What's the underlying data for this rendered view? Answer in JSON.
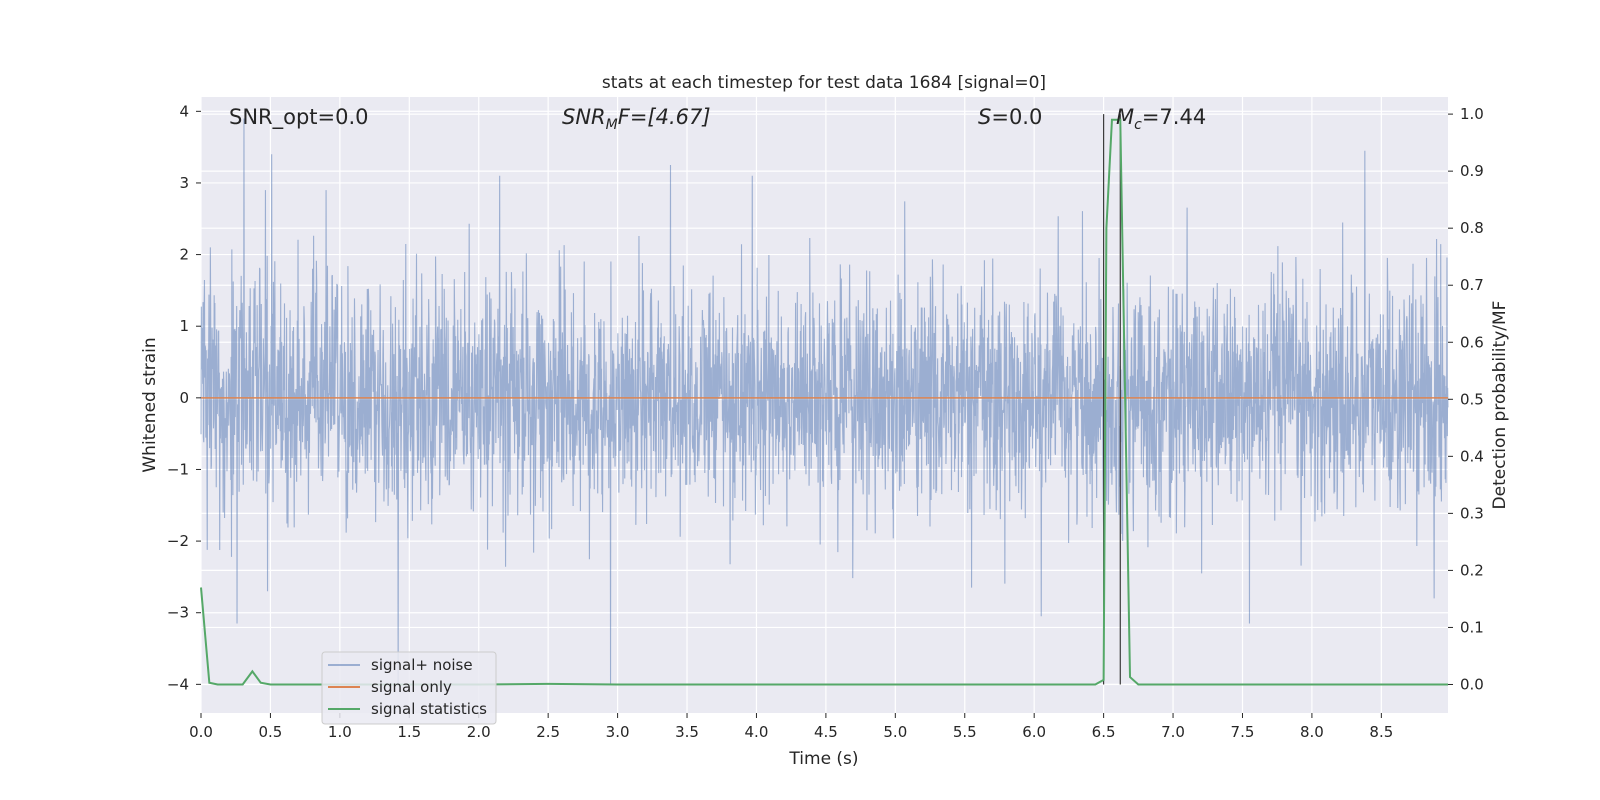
{
  "chart_data": {
    "type": "line",
    "title": "stats at each timestep for test data 1684 [signal=0]",
    "xlabel": "Time (s)",
    "ylabel_left": "Whitened strain",
    "ylabel_right": "Detection probability/MF",
    "xlim": [
      0.0,
      8.98
    ],
    "ylim_left": [
      -4.4,
      4.2
    ],
    "ylim_right": [
      -0.05,
      1.03
    ],
    "x_ticks": [
      "0.0",
      "0.5",
      "1.0",
      "1.5",
      "2.0",
      "2.5",
      "3.0",
      "3.5",
      "4.0",
      "4.5",
      "5.0",
      "5.5",
      "6.0",
      "6.5",
      "7.0",
      "7.5",
      "8.0",
      "8.5"
    ],
    "y_ticks_left": [
      "−4",
      "−3",
      "−2",
      "−1",
      "0",
      "1",
      "2",
      "3",
      "4"
    ],
    "y_ticks_right": [
      "0.0",
      "0.1",
      "0.2",
      "0.3",
      "0.4",
      "0.5",
      "0.6",
      "0.7",
      "0.8",
      "0.9",
      "1.0"
    ],
    "grid": true,
    "legend_position": "lower-left",
    "annotations": {
      "snr_opt": "SNR_opt=0.0",
      "snr_mf_base": "SNR",
      "snr_mf_sub": "M",
      "snr_mf_rest": "F=[4.67]",
      "s_stat_var": "S",
      "s_stat_rest": "=0.0",
      "mc_base": "M",
      "mc_sub": "c",
      "mc_rest": "=7.44"
    },
    "vertical_markers": [
      6.5,
      6.62
    ],
    "series": [
      {
        "name": "signal+ noise",
        "color": "#4c72b0",
        "opacity": 0.5,
        "axis": "left",
        "description_kind": "whitened noise, roughly unit variance",
        "spikes": [
          {
            "x": 0.31,
            "y": 3.9
          },
          {
            "x": 0.51,
            "y": 3.4
          },
          {
            "x": 0.26,
            "y": -3.15
          },
          {
            "x": 0.48,
            "y": -2.7
          },
          {
            "x": 1.42,
            "y": -4.0
          },
          {
            "x": 2.15,
            "y": 3.1
          },
          {
            "x": 2.95,
            "y": -4.0
          },
          {
            "x": 3.38,
            "y": 3.25
          },
          {
            "x": 3.97,
            "y": 3.1
          },
          {
            "x": 6.05,
            "y": -3.05
          },
          {
            "x": 7.55,
            "y": -3.15
          },
          {
            "x": 8.38,
            "y": 3.45
          },
          {
            "x": 8.88,
            "y": -2.8
          },
          {
            "x": 0.9,
            "y": 2.9
          },
          {
            "x": 5.55,
            "y": -2.65
          }
        ]
      },
      {
        "name": "signal only",
        "color": "#dd8452",
        "axis": "left",
        "x": [
          0.0,
          8.98
        ],
        "y": [
          0.0,
          0.0
        ]
      },
      {
        "name": "signal statistics",
        "color": "#55a868",
        "axis": "right",
        "x": [
          0.0,
          0.06,
          0.12,
          0.18,
          0.24,
          0.3,
          0.37,
          0.43,
          0.5,
          0.56,
          1.0,
          2.0,
          2.5,
          3.0,
          4.0,
          5.0,
          6.0,
          6.44,
          6.5,
          6.52,
          6.56,
          6.62,
          6.69,
          6.75,
          7.0,
          8.0,
          8.98
        ],
        "y": [
          0.17,
          0.003,
          0.0,
          0.0,
          0.0,
          0.0,
          0.023,
          0.003,
          0.0,
          0.0,
          0.0,
          0.0,
          0.001,
          0.0,
          0.0,
          0.0,
          0.0,
          0.0,
          0.008,
          0.8,
          0.99,
          0.99,
          0.013,
          0.0,
          0.0,
          0.0,
          0.0
        ]
      }
    ]
  }
}
